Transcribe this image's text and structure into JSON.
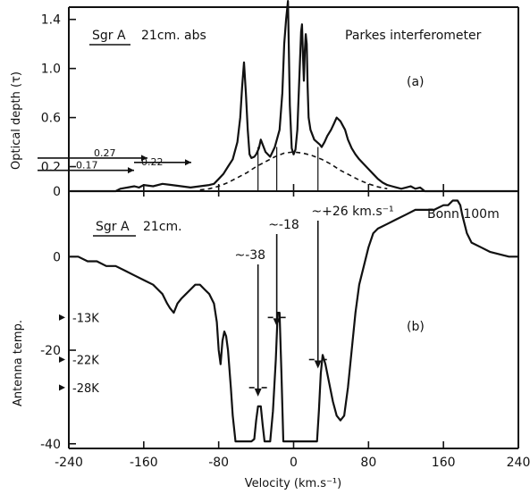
{
  "chart_data": [
    {
      "type": "line",
      "panel": "(a)",
      "title_left": "Sgr A",
      "title_mid": "21cm. abs",
      "title_right": "Parkes interferometer",
      "ylabel": "Optical depth (τ)",
      "xlim": [
        -240,
        240
      ],
      "ylim": [
        0,
        1.5
      ],
      "yticks": [
        0,
        0.2,
        0.6,
        1.0,
        1.4
      ],
      "ytick_labels": [
        "0",
        "0.2",
        "0.6",
        "1.0",
        "1.4"
      ],
      "series": [
        {
          "style": "solid",
          "x": [
            -245,
            -190,
            -185,
            -170,
            -165,
            -160,
            -150,
            -140,
            -130,
            -120,
            -110,
            -100,
            -90,
            -85,
            -80,
            -75,
            -70,
            -65,
            -60,
            -57,
            -55,
            -53,
            -51,
            -49,
            -47,
            -45,
            -42,
            -40,
            -37,
            -35,
            -33,
            -30,
            -25,
            -20,
            -15,
            -12,
            -10,
            -8,
            -6,
            -4,
            -2,
            0,
            2,
            4,
            6,
            8,
            9,
            10,
            11,
            12,
            13,
            14,
            15,
            16,
            18,
            20,
            22,
            25,
            28,
            30,
            33,
            36,
            40,
            43,
            46,
            50,
            55,
            58,
            62,
            66,
            70,
            75,
            80,
            85,
            90,
            95,
            100,
            105,
            110,
            115,
            120,
            125,
            130,
            135,
            140,
            245
          ],
          "y": [
            0,
            0,
            0.02,
            0.04,
            0.03,
            0.05,
            0.04,
            0.06,
            0.05,
            0.04,
            0.03,
            0.04,
            0.05,
            0.06,
            0.1,
            0.14,
            0.2,
            0.26,
            0.4,
            0.6,
            0.85,
            1.05,
            0.8,
            0.5,
            0.3,
            0.27,
            0.28,
            0.3,
            0.35,
            0.42,
            0.38,
            0.32,
            0.28,
            0.36,
            0.5,
            0.8,
            1.2,
            1.4,
            1.55,
            0.7,
            0.35,
            0.3,
            0.34,
            0.5,
            0.9,
            1.3,
            1.36,
            1.1,
            0.9,
            1.15,
            1.28,
            1.2,
            0.85,
            0.6,
            0.5,
            0.46,
            0.42,
            0.4,
            0.38,
            0.36,
            0.4,
            0.45,
            0.5,
            0.55,
            0.6,
            0.57,
            0.5,
            0.42,
            0.35,
            0.3,
            0.26,
            0.22,
            0.18,
            0.14,
            0.1,
            0.07,
            0.05,
            0.04,
            0.03,
            0.02,
            0.03,
            0.04,
            0.02,
            0.03,
            0,
            0
          ]
        },
        {
          "style": "dashed",
          "x": [
            -100,
            -90,
            -80,
            -70,
            -60,
            -50,
            -40,
            -30,
            -20,
            -10,
            0,
            10,
            20,
            30,
            40,
            50,
            60,
            70,
            80,
            90,
            100
          ],
          "y": [
            0.01,
            0.02,
            0.04,
            0.07,
            0.11,
            0.15,
            0.2,
            0.24,
            0.28,
            0.31,
            0.32,
            0.31,
            0.29,
            0.26,
            0.22,
            0.17,
            0.13,
            0.09,
            0.06,
            0.035,
            0.02
          ]
        }
      ],
      "annotations": [
        {
          "label": "0.27",
          "y": 0.27
        },
        {
          "label": "0.22",
          "y": 0.22
        },
        {
          "label": "0.17",
          "y": 0.17
        }
      ]
    },
    {
      "type": "line",
      "panel": "(b)",
      "title_left": "Sgr A",
      "title_mid": "21cm.",
      "title_right": "Bonn 100m",
      "xlabel": "Velocity (km.s⁻¹)",
      "ylabel": "Antenna temp.",
      "xlim": [
        -240,
        240
      ],
      "ylim": [
        -41,
        14
      ],
      "xticks": [
        -240,
        -160,
        -80,
        0,
        80,
        160,
        240
      ],
      "xtick_labels": [
        "-240",
        "-160",
        "-80",
        "0",
        "80",
        "160",
        "240"
      ],
      "yticks": [
        0,
        -20,
        -40
      ],
      "ytick_labels": [
        "0",
        "-20",
        "-40"
      ],
      "series": [
        {
          "style": "solid",
          "x": [
            -245,
            -230,
            -220,
            -210,
            -200,
            -190,
            -180,
            -170,
            -160,
            -150,
            -145,
            -140,
            -135,
            -132,
            -128,
            -124,
            -120,
            -115,
            -110,
            -105,
            -100,
            -95,
            -90,
            -85,
            -82,
            -80,
            -78,
            -76,
            -74,
            -72,
            -70,
            -67,
            -65,
            -62,
            -60,
            -55,
            -50,
            -45,
            -42,
            -40,
            -38,
            -35,
            -33,
            -31,
            -28,
            -25,
            -22,
            -19,
            -17,
            -15,
            -13,
            -11,
            -9,
            -6,
            -3,
            0,
            5,
            10,
            15,
            20,
            25,
            27,
            29,
            31,
            34,
            38,
            42,
            46,
            50,
            54,
            58,
            62,
            66,
            70,
            75,
            80,
            85,
            90,
            100,
            110,
            120,
            130,
            140,
            150,
            160,
            165,
            170,
            175,
            178,
            180,
            185,
            190,
            200,
            210,
            220,
            230,
            245
          ],
          "y": [
            0,
            0,
            -1,
            -1,
            -2,
            -2,
            -3,
            -4,
            -5,
            -6,
            -7,
            -8,
            -10,
            -11,
            -12,
            -10,
            -9,
            -8,
            -7,
            -6,
            -6,
            -7,
            -8,
            -10,
            -14,
            -20,
            -23,
            -18,
            -16,
            -17,
            -20,
            -28,
            -34,
            -39.5,
            -39.5,
            -39.5,
            -39.5,
            -39.5,
            -39,
            -35,
            -32,
            -32,
            -36,
            -39.5,
            -39.5,
            -39.5,
            -33,
            -22,
            -12,
            -12,
            -25,
            -39.5,
            -39.5,
            -39.5,
            -39.5,
            -39.5,
            -39.5,
            -39.5,
            -39.5,
            -39.5,
            -39.5,
            -33,
            -25,
            -21,
            -23,
            -27,
            -31,
            -34,
            -35,
            -34,
            -28,
            -20,
            -12,
            -6,
            -2,
            2,
            5,
            6,
            7,
            8,
            9,
            10,
            10,
            10,
            11,
            11,
            12,
            12,
            11,
            9,
            5,
            3,
            2,
            1,
            0.5,
            0,
            0
          ]
        }
      ],
      "markers": [
        {
          "label": "-13K",
          "y": -13
        },
        {
          "label": "-22K",
          "y": -22
        },
        {
          "label": "-28K",
          "y": -28
        }
      ],
      "velocity_annotations": [
        {
          "label": "~-38",
          "x": -38,
          "y_arrow_end": -28
        },
        {
          "label": "~-18",
          "x": -18,
          "y_arrow_end": -13
        },
        {
          "label": "~+26 km.s⁻¹",
          "x": 26,
          "y_arrow_end": -22
        }
      ]
    }
  ]
}
